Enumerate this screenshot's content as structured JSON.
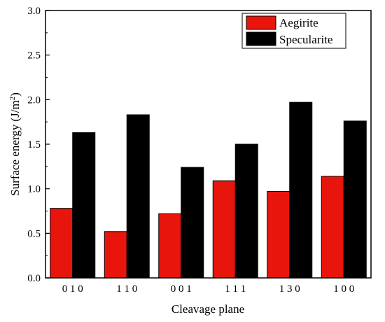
{
  "chart_data": {
    "type": "bar",
    "categories": [
      "0 1 0",
      "1 1 0",
      "0 0 1",
      "1 1 1",
      "1 3 0",
      "1 0 0"
    ],
    "series": [
      {
        "name": "Aegirite",
        "values": [
          0.78,
          0.52,
          0.72,
          1.09,
          0.97,
          1.14
        ],
        "color": "#e8150c"
      },
      {
        "name": "Specularite",
        "values": [
          1.63,
          1.83,
          1.24,
          1.5,
          1.97,
          1.76
        ],
        "color": "#000000"
      }
    ],
    "xlabel": "Cleavage plane",
    "ylabel": "Surface energy (J/m²)",
    "ylim": [
      0,
      3.0
    ],
    "yticks": [
      "0.0",
      "0.5",
      "1.0",
      "1.5",
      "2.0",
      "2.5",
      "3.0"
    ],
    "legend_position": "top-right",
    "grid": false
  }
}
